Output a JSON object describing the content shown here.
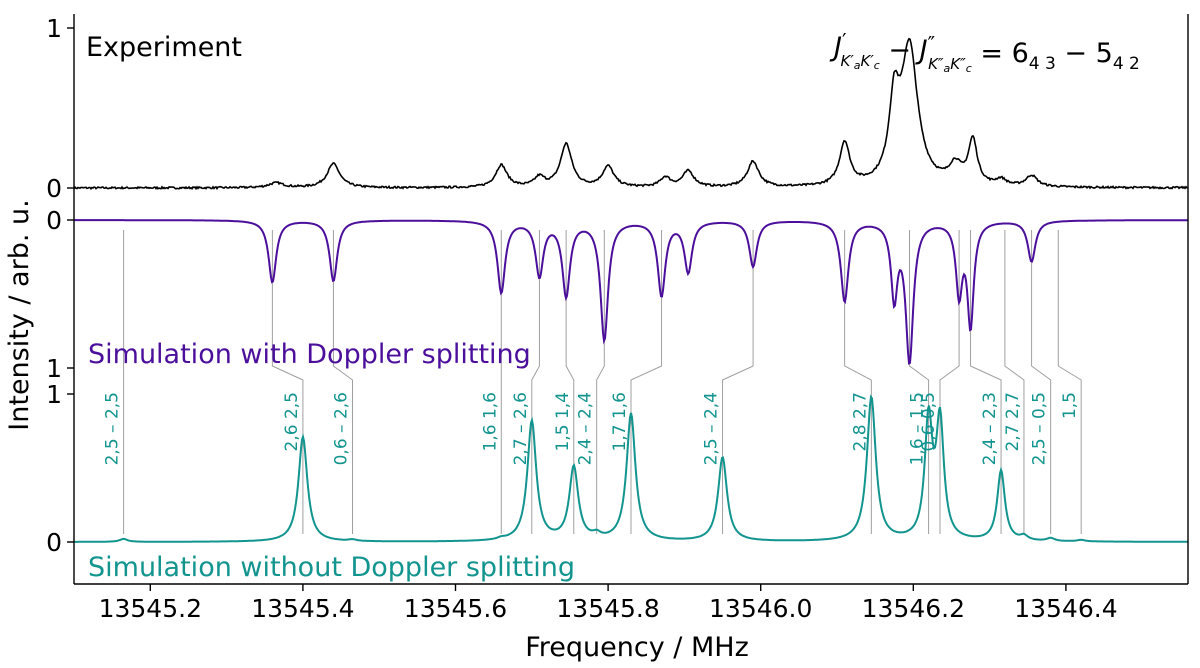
{
  "chart_data": {
    "type": "line",
    "xlabel": "Frequency / MHz",
    "ylabel": "Intensity / arb. u.",
    "xlim": [
      13545.1,
      13546.56
    ],
    "x_ticks": [
      "13545.2",
      "13545.4",
      "13545.6",
      "13545.8",
      "13546.0",
      "13546.2",
      "13546.4"
    ],
    "x_tick_values": [
      13545.2,
      13545.4,
      13545.6,
      13545.8,
      13546.0,
      13546.2,
      13546.4
    ],
    "y_tick_labels": {
      "experiment": [
        "1",
        "0"
      ],
      "simulation_with_doppler": [
        "0",
        "1"
      ],
      "simulation_without_doppler": [
        "1",
        "0"
      ]
    },
    "colors": {
      "experiment": "#000000",
      "with_doppler": "#4b0f9c",
      "without_doppler": "#12948f",
      "connectors": "#a0a0a0"
    },
    "transition_label_parts": [
      "J",
      "′",
      "K′",
      "a",
      "K′",
      "c",
      " − ",
      "J",
      "″",
      "K″",
      "a",
      "K″",
      "c",
      " = ",
      "6",
      "4 3",
      " − ",
      "5",
      "4 2"
    ],
    "series": [
      {
        "name": "Experiment",
        "color": "#000000",
        "peaks": [
          {
            "x": 13545.365,
            "y": 0.03,
            "w": 0.012
          },
          {
            "x": 13545.44,
            "y": 0.15,
            "w": 0.01
          },
          {
            "x": 13545.66,
            "y": 0.14,
            "w": 0.009
          },
          {
            "x": 13545.71,
            "y": 0.06,
            "w": 0.008
          },
          {
            "x": 13545.745,
            "y": 0.27,
            "w": 0.009
          },
          {
            "x": 13545.8,
            "y": 0.13,
            "w": 0.009
          },
          {
            "x": 13545.875,
            "y": 0.06,
            "w": 0.008
          },
          {
            "x": 13545.905,
            "y": 0.1,
            "w": 0.009
          },
          {
            "x": 13545.99,
            "y": 0.16,
            "w": 0.009
          },
          {
            "x": 13546.11,
            "y": 0.27,
            "w": 0.008
          },
          {
            "x": 13546.175,
            "y": 0.46,
            "w": 0.008
          },
          {
            "x": 13546.195,
            "y": 0.86,
            "w": 0.013
          },
          {
            "x": 13546.255,
            "y": 0.12,
            "w": 0.01
          },
          {
            "x": 13546.278,
            "y": 0.28,
            "w": 0.007
          },
          {
            "x": 13546.315,
            "y": 0.04,
            "w": 0.008
          },
          {
            "x": 13546.355,
            "y": 0.07,
            "w": 0.009
          }
        ]
      },
      {
        "name": "Simulation with Doppler splitting",
        "color": "#4b0f9c",
        "peaks": [
          {
            "x": 13545.36,
            "y": 0.5,
            "w": 0.006
          },
          {
            "x": 13545.44,
            "y": 0.49,
            "w": 0.006
          },
          {
            "x": 13545.66,
            "y": 0.58,
            "w": 0.006
          },
          {
            "x": 13545.71,
            "y": 0.44,
            "w": 0.006
          },
          {
            "x": 13545.745,
            "y": 0.6,
            "w": 0.006
          },
          {
            "x": 13545.795,
            "y": 0.96,
            "w": 0.006
          },
          {
            "x": 13545.87,
            "y": 0.6,
            "w": 0.006
          },
          {
            "x": 13545.905,
            "y": 0.41,
            "w": 0.006
          },
          {
            "x": 13545.99,
            "y": 0.37,
            "w": 0.006
          },
          {
            "x": 13546.11,
            "y": 0.65,
            "w": 0.006
          },
          {
            "x": 13546.175,
            "y": 0.6,
            "w": 0.005
          },
          {
            "x": 13546.195,
            "y": 1.12,
            "w": 0.006
          },
          {
            "x": 13546.26,
            "y": 0.57,
            "w": 0.005
          },
          {
            "x": 13546.275,
            "y": 0.83,
            "w": 0.005
          },
          {
            "x": 13546.355,
            "y": 0.33,
            "w": 0.006
          }
        ]
      },
      {
        "name": "Simulation without Doppler splitting",
        "color": "#12948f",
        "peaks": [
          {
            "x": 13545.165,
            "y": 0.02,
            "w": 0.006
          },
          {
            "x": 13545.4,
            "y": 0.7,
            "w": 0.007
          },
          {
            "x": 13545.465,
            "y": 0.01,
            "w": 0.006
          },
          {
            "x": 13545.66,
            "y": 0.01,
            "w": 0.006
          },
          {
            "x": 13545.7,
            "y": 0.8,
            "w": 0.007
          },
          {
            "x": 13545.755,
            "y": 0.49,
            "w": 0.007
          },
          {
            "x": 13545.785,
            "y": 0.03,
            "w": 0.006
          },
          {
            "x": 13545.83,
            "y": 0.85,
            "w": 0.007
          },
          {
            "x": 13545.95,
            "y": 0.56,
            "w": 0.007
          },
          {
            "x": 13546.145,
            "y": 0.96,
            "w": 0.007
          },
          {
            "x": 13546.22,
            "y": 0.79,
            "w": 0.006
          },
          {
            "x": 13546.235,
            "y": 0.78,
            "w": 0.006
          },
          {
            "x": 13546.315,
            "y": 0.47,
            "w": 0.006
          },
          {
            "x": 13546.345,
            "y": 0.03,
            "w": 0.006
          },
          {
            "x": 13546.38,
            "y": 0.02,
            "w": 0.006
          },
          {
            "x": 13546.42,
            "y": 0.01,
            "w": 0.006
          }
        ]
      }
    ],
    "component_labels": [
      {
        "text": "2,5 – 2,5",
        "x": 13545.165,
        "top_x": 13545.165
      },
      {
        "text": "2,6 2,5",
        "x": 13545.4,
        "top_x": 13545.36
      },
      {
        "text": "0,6 – 2,6",
        "x": 13545.465,
        "top_x": 13545.44
      },
      {
        "text": "1,6 1,6",
        "x": 13545.66,
        "top_x": 13545.66
      },
      {
        "text": "2,7 – 2,6",
        "x": 13545.7,
        "top_x": 13545.71
      },
      {
        "text": "1,5 1,4",
        "x": 13545.755,
        "top_x": 13545.745
      },
      {
        "text": "2,4 – 2,4",
        "x": 13545.785,
        "top_x": 13545.795
      },
      {
        "text": "1,7 1,6",
        "x": 13545.83,
        "top_x": 13545.87
      },
      {
        "text": "2,5 – 2,4",
        "x": 13545.95,
        "top_x": 13545.99
      },
      {
        "text": "2,8 2,7",
        "x": 13546.145,
        "top_x": 13546.11
      },
      {
        "text": "1,6 – 1,5",
        "x": 13546.22,
        "top_x": 13546.195
      },
      {
        "text": "0,6 0,5",
        "x": 13546.235,
        "top_x": 13546.26
      },
      {
        "text": "2,4 – 2,3",
        "x": 13546.315,
        "top_x": 13546.275
      },
      {
        "text": "2,7 2,7",
        "x": 13546.345,
        "top_x": 13546.32
      },
      {
        "text": "2,5 – 0,5",
        "x": 13546.38,
        "top_x": 13546.355
      },
      {
        "text": "1,5",
        "x": 13546.42,
        "top_x": 13546.39
      }
    ]
  }
}
